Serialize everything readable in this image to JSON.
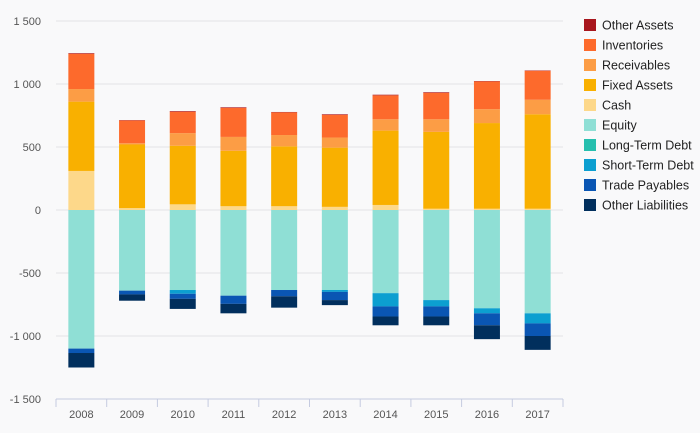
{
  "chart_data": {
    "type": "bar",
    "stacked": true,
    "categories": [
      "2008",
      "2009",
      "2010",
      "2011",
      "2012",
      "2013",
      "2014",
      "2015",
      "2016",
      "2017"
    ],
    "ylim": [
      -1500,
      1500
    ],
    "yticks": [
      1500,
      1000,
      500,
      0,
      -500,
      -1000,
      -1500
    ],
    "ytick_labels": [
      "1 500",
      "1 000",
      "500",
      "0",
      "-500",
      "-1 000",
      "-1 500"
    ],
    "grid": "horizontal",
    "legend_position": "right",
    "positive_series": [
      {
        "name": "Cash",
        "color": "#fdd88a",
        "values": [
          310,
          15,
          45,
          30,
          30,
          25,
          40,
          10,
          10,
          10
        ]
      },
      {
        "name": "Fixed Assets",
        "color": "#f9b000",
        "values": [
          550,
          505,
          465,
          440,
          475,
          470,
          590,
          610,
          680,
          750
        ]
      },
      {
        "name": "Receivables",
        "color": "#fc9d45",
        "values": [
          100,
          10,
          100,
          110,
          90,
          80,
          90,
          100,
          110,
          115
        ]
      },
      {
        "name": "Inventories",
        "color": "#fd6a2c",
        "values": [
          280,
          180,
          170,
          230,
          180,
          180,
          190,
          210,
          220,
          230
        ]
      },
      {
        "name": "Other Assets",
        "color": "#a8161d",
        "values": [
          5,
          3,
          5,
          5,
          3,
          5,
          5,
          5,
          3,
          3
        ]
      }
    ],
    "negative_series": [
      {
        "name": "Equity",
        "color": "#8fdfd5",
        "values": [
          -1100,
          -640,
          -635,
          -680,
          -635,
          -635,
          -660,
          -715,
          -780,
          -820
        ]
      },
      {
        "name": "Long-Term Debt",
        "color": "#26bfae",
        "values": [
          0,
          0,
          0,
          0,
          0,
          0,
          0,
          0,
          0,
          0
        ]
      },
      {
        "name": "Short-Term Debt",
        "color": "#0c9fd0",
        "values": [
          0,
          0,
          -30,
          0,
          0,
          -15,
          -105,
          -50,
          -40,
          -80
        ]
      },
      {
        "name": "Trade Payables",
        "color": "#0a56b3",
        "values": [
          -35,
          -30,
          -40,
          -65,
          -50,
          -65,
          -80,
          -80,
          -95,
          -100
        ]
      },
      {
        "name": "Other Liabilities",
        "color": "#012f5d",
        "values": [
          -115,
          -50,
          -80,
          -75,
          -90,
          -40,
          -70,
          -70,
          -110,
          -110
        ]
      }
    ],
    "legend": [
      {
        "name": "Other Assets",
        "color": "#a8161d"
      },
      {
        "name": "Inventories",
        "color": "#fd6a2c"
      },
      {
        "name": "Receivables",
        "color": "#fc9d45"
      },
      {
        "name": "Fixed Assets",
        "color": "#f9b000"
      },
      {
        "name": "Cash",
        "color": "#fdd88a"
      },
      {
        "name": "Equity",
        "color": "#8fdfd5"
      },
      {
        "name": "Long-Term Debt",
        "color": "#26bfae"
      },
      {
        "name": "Short-Term Debt",
        "color": "#0c9fd0"
      },
      {
        "name": "Trade Payables",
        "color": "#0a56b3"
      },
      {
        "name": "Other Liabilities",
        "color": "#012f5d"
      }
    ]
  }
}
